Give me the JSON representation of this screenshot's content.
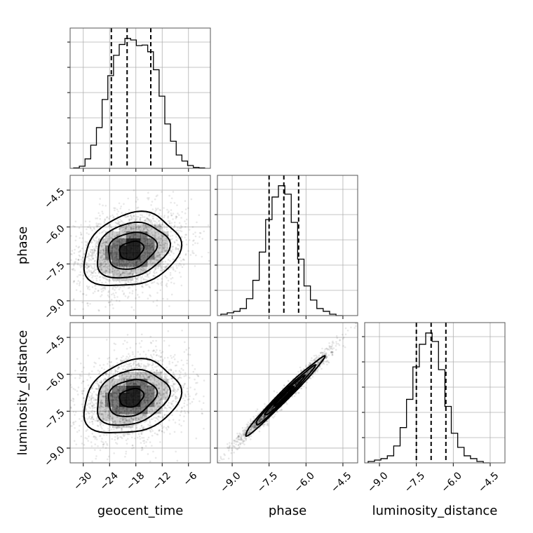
{
  "chart_data": {
    "type": "corner",
    "parameters": [
      "geocent_time",
      "phase",
      "luminosity_distance"
    ],
    "ranges": {
      "geocent_time": [
        -33,
        -1
      ],
      "phase": [
        -9.6,
        -3.9
      ],
      "luminosity_distance": [
        -9.6,
        -3.9
      ]
    },
    "ticks": {
      "geocent_time": [
        "-30",
        "-24",
        "-18",
        "-12",
        "-6"
      ],
      "phase": [
        "-9.0",
        "-7.5",
        "-6.0",
        "-4.5"
      ],
      "luminosity_distance": [
        "-9.0",
        "-7.5",
        "-6.0",
        "-4.5"
      ]
    },
    "tick_values": {
      "geocent_time": [
        -30,
        -24,
        -18,
        -12,
        -6
      ],
      "phase": [
        -9.0,
        -7.5,
        -6.0,
        -4.5
      ],
      "luminosity_distance": [
        -9.0,
        -7.5,
        -6.0,
        -4.5
      ]
    },
    "quantiles": {
      "geocent_time": [
        -23.6,
        -20.0,
        -14.6
      ],
      "phase": [
        -7.5,
        -6.9,
        -6.3
      ],
      "luminosity_distance": [
        -7.5,
        -6.9,
        -6.3
      ]
    },
    "histograms": {
      "geocent_time": {
        "edges": [
          -32.2,
          -30.9,
          -29.6,
          -28.3,
          -27.0,
          -25.7,
          -24.4,
          -23.1,
          -21.8,
          -20.5,
          -19.2,
          -17.9,
          -16.6,
          -15.3,
          -14.0,
          -12.7,
          -11.4,
          -10.1,
          -8.8,
          -7.5,
          -6.2,
          -4.9,
          -3.6,
          -2.3
        ],
        "counts": [
          0.3,
          1.5,
          6.7,
          16.5,
          29.0,
          49.0,
          66.0,
          80.5,
          88.2,
          92.5,
          91.4,
          87.4,
          87.8,
          83.0,
          70.2,
          51.4,
          31.6,
          19.3,
          9.5,
          5.2,
          2.0,
          0.7,
          0.3
        ]
      },
      "phase": {
        "edges": [
          -9.46,
          -9.2,
          -8.94,
          -8.68,
          -8.42,
          -8.16,
          -7.9,
          -7.64,
          -7.38,
          -7.12,
          -6.86,
          -6.6,
          -6.34,
          -6.08,
          -5.82,
          -5.56,
          -5.3,
          -5.04,
          -4.78,
          -4.52
        ],
        "counts": [
          1,
          2,
          3,
          5,
          12,
          25,
          45,
          68,
          84,
          92,
          86,
          66,
          40,
          21,
          11,
          5,
          3,
          1,
          0
        ]
      },
      "luminosity_distance": {
        "edges": [
          -9.46,
          -9.2,
          -8.94,
          -8.68,
          -8.42,
          -8.16,
          -7.9,
          -7.64,
          -7.38,
          -7.12,
          -6.86,
          -6.6,
          -6.34,
          -6.08,
          -5.82,
          -5.56,
          -5.3,
          -5.04,
          -4.78,
          -4.52
        ],
        "counts": [
          1,
          2,
          3,
          5,
          12,
          25,
          45,
          68,
          84,
          92,
          86,
          66,
          40,
          21,
          11,
          5,
          3,
          1,
          0
        ]
      }
    },
    "pairs": [
      {
        "x": "geocent_time",
        "y": "phase",
        "mean": [
          -19.0,
          -6.95
        ],
        "sd": [
          5.5,
          0.75
        ],
        "corr": 0.22
      },
      {
        "x": "geocent_time",
        "y": "luminosity_distance",
        "mean": [
          -19.0,
          -6.95
        ],
        "sd": [
          5.5,
          0.75
        ],
        "corr": 0.22
      },
      {
        "x": "phase",
        "y": "luminosity_distance",
        "mean": [
          -6.9,
          -6.9
        ],
        "sd": [
          0.8,
          0.8
        ],
        "corr": 0.985
      }
    ],
    "contour_levels_sigma": [
      0.5,
      1.0,
      1.5,
      2.0
    ],
    "grid": true
  }
}
